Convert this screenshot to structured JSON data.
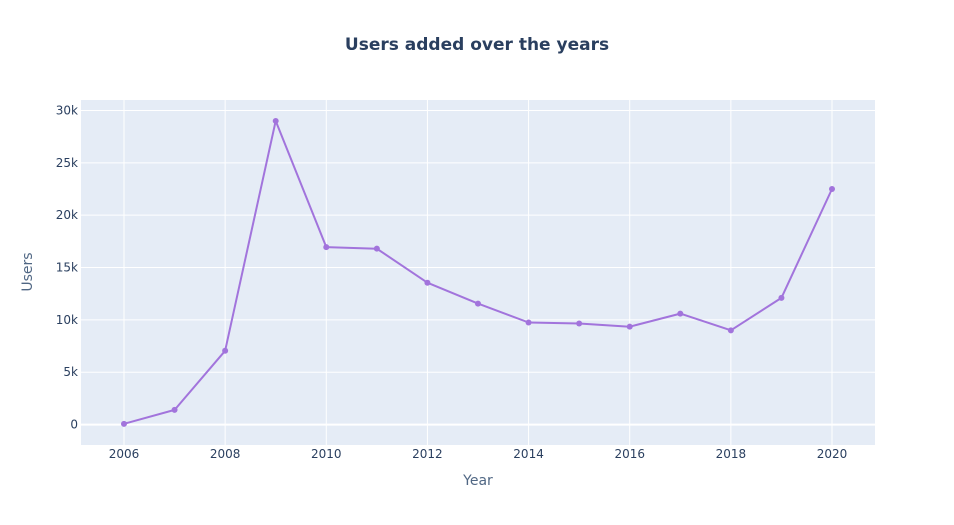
{
  "chart_data": {
    "type": "line",
    "title": "Users added over the years",
    "xlabel": "Year",
    "ylabel": "Users",
    "x": [
      2006,
      2007,
      2008,
      2009,
      2010,
      2011,
      2012,
      2013,
      2014,
      2015,
      2016,
      2017,
      2018,
      2019,
      2020
    ],
    "series": [
      {
        "values": [
          70,
          1400,
          7050,
          29000,
          16950,
          16800,
          13550,
          11550,
          9750,
          9650,
          9350,
          10600,
          9000,
          12100,
          22500
        ]
      }
    ],
    "xlim": [
      2005.15,
      2020.85
    ],
    "ylim": [
      -1950,
      31000
    ],
    "x_ticks": [
      2006,
      2008,
      2010,
      2012,
      2014,
      2016,
      2018,
      2020
    ],
    "x_tick_labels": [
      "2006",
      "2008",
      "2010",
      "2012",
      "2014",
      "2016",
      "2018",
      "2020"
    ],
    "y_ticks": [
      0,
      5000,
      10000,
      15000,
      20000,
      25000,
      30000
    ],
    "y_tick_labels": [
      "0",
      "5k",
      "10k",
      "15k",
      "20k",
      "25k",
      "30k"
    ],
    "grid": true,
    "legend": "none",
    "colors": {
      "line": "#a274dc",
      "plot_bg": "#e5ecf6",
      "grid": "#ffffff",
      "text": "#2a3f5f",
      "axis_title": "#506784"
    }
  }
}
